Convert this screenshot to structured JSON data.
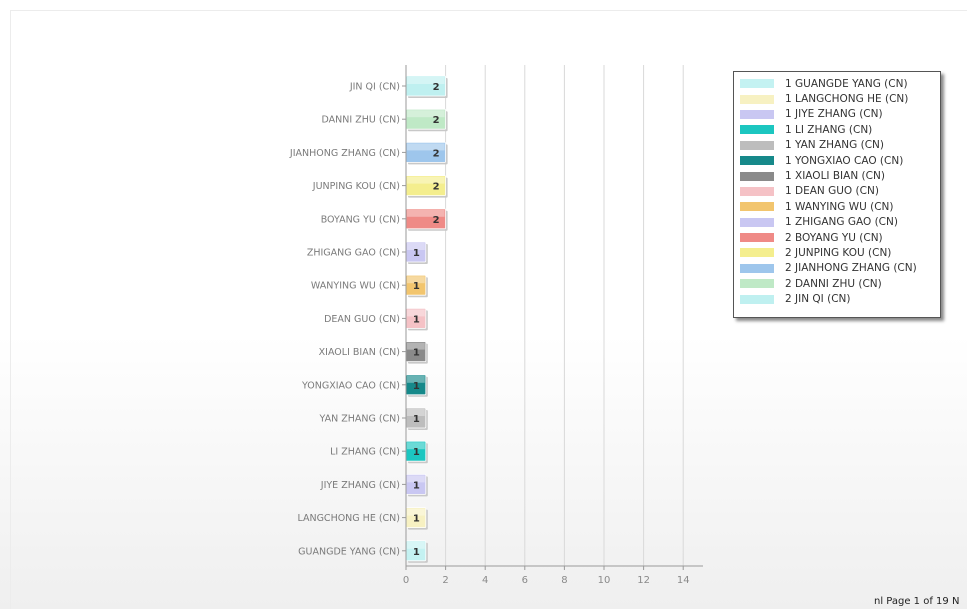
{
  "chart_data": {
    "type": "bar",
    "orientation": "horizontal",
    "categories": [
      "JIN QI (CN)",
      "DANNI ZHU (CN)",
      "JIANHONG ZHANG (CN)",
      "JUNPING KOU (CN)",
      "BOYANG YU (CN)",
      "ZHIGANG GAO (CN)",
      "WANYING WU (CN)",
      "DEAN GUO (CN)",
      "XIAOLI BIAN (CN)",
      "YONGXIAO CAO (CN)",
      "YAN ZHANG (CN)",
      "LI ZHANG (CN)",
      "JIYE ZHANG (CN)",
      "LANGCHONG HE (CN)",
      "GUANGDE YANG (CN)"
    ],
    "values": [
      2,
      2,
      2,
      2,
      2,
      1,
      1,
      1,
      1,
      1,
      1,
      1,
      1,
      1,
      1
    ],
    "colors": [
      "#bff0f0",
      "#bfe9c6",
      "#9ec6ec",
      "#f4ee8e",
      "#ef8a86",
      "#c9c7f2",
      "#f2c56e",
      "#f5c2c6",
      "#8a8a8a",
      "#16898a",
      "#bdbdbd",
      "#1cc6c0",
      "#c9c7f2",
      "#f7f1c2",
      "#c4f2f2"
    ],
    "xlim": [
      0,
      15
    ],
    "xticks": [
      0,
      2,
      4,
      6,
      8,
      10,
      12,
      14
    ],
    "grid": true,
    "legend_position": "right",
    "legend": [
      {
        "label": "1 GUANGDE YANG (CN)",
        "color": "#c4f2f2"
      },
      {
        "label": "1 LANGCHONG HE (CN)",
        "color": "#f7f1c2"
      },
      {
        "label": "1 JIYE ZHANG (CN)",
        "color": "#c9c7f2"
      },
      {
        "label": "1 LI ZHANG (CN)",
        "color": "#1cc6c0"
      },
      {
        "label": "1 YAN ZHANG (CN)",
        "color": "#bdbdbd"
      },
      {
        "label": "1 YONGXIAO CAO (CN)",
        "color": "#16898a"
      },
      {
        "label": "1 XIAOLI BIAN (CN)",
        "color": "#8a8a8a"
      },
      {
        "label": "1 DEAN GUO (CN)",
        "color": "#f5c2c6"
      },
      {
        "label": "1 WANYING WU (CN)",
        "color": "#f2c56e"
      },
      {
        "label": "1 ZHIGANG GAO (CN)",
        "color": "#c9c7f2"
      },
      {
        "label": "2 BOYANG YU (CN)",
        "color": "#ef8a86"
      },
      {
        "label": "2 JUNPING KOU (CN)",
        "color": "#f4ee8e"
      },
      {
        "label": "2 JIANHONG ZHANG (CN)",
        "color": "#9ec6ec"
      },
      {
        "label": "2 DANNI ZHU (CN)",
        "color": "#bfe9c6"
      },
      {
        "label": "2 JIN QI (CN)",
        "color": "#bff0f0"
      }
    ]
  },
  "footer": {
    "text": "nl Page 1 of 19 N"
  }
}
